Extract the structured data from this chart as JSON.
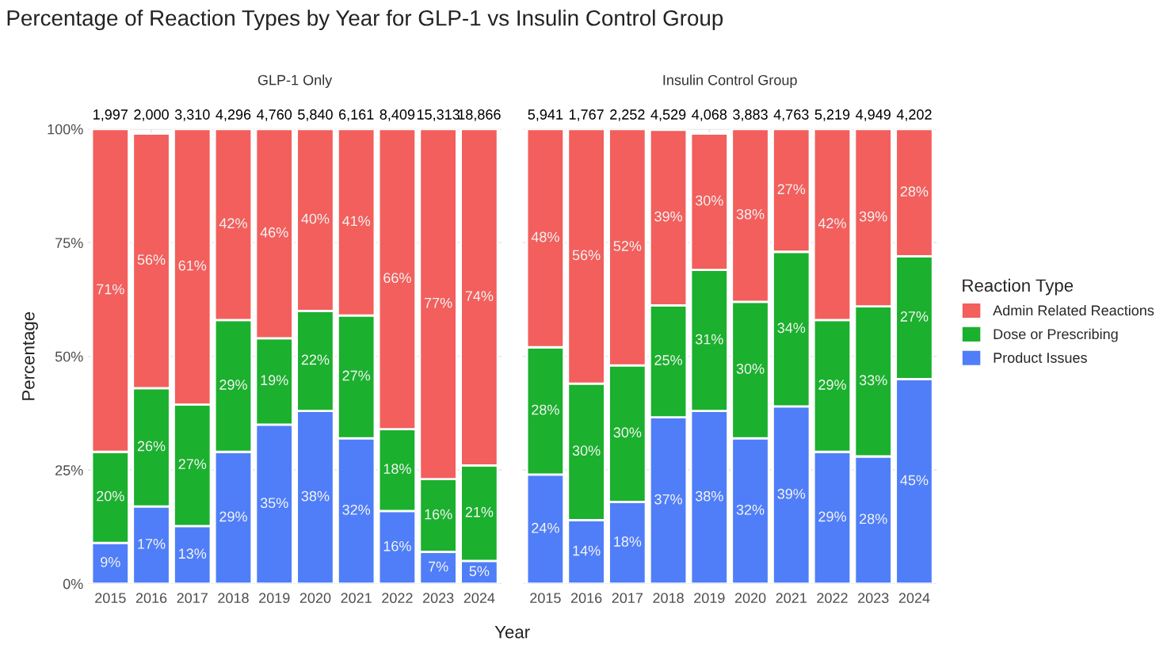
{
  "chart_data": [
    {
      "type": "bar",
      "stacked": true,
      "title": "Percentage of Reaction Types by Year for GLP-1 vs Insulin Control Group",
      "subtitle": "GLP-1 Only",
      "xlabel": "Year",
      "ylabel": "Percentage",
      "legend_title": "Reaction Type",
      "legend": "right",
      "categories": [
        "2015",
        "2016",
        "2017",
        "2018",
        "2019",
        "2020",
        "2021",
        "2022",
        "2023",
        "2024"
      ],
      "series": [
        {
          "name": "Product Issues",
          "color": "#4f7ef8",
          "values": [
            9,
            17,
            12.7,
            29,
            35,
            38,
            32,
            16,
            7,
            5
          ],
          "value_labels": [
            "9%",
            "17%",
            "13%",
            "29%",
            "35%",
            "38%",
            "32%",
            "16%",
            "7%",
            "5%"
          ]
        },
        {
          "name": "Dose or Prescribing",
          "color": "#1bb02e",
          "values": [
            20,
            26,
            26.7,
            29,
            19,
            22,
            27,
            18,
            16,
            21
          ],
          "value_labels": [
            "20%",
            "26%",
            "27%",
            "29%",
            "19%",
            "22%",
            "27%",
            "18%",
            "16%",
            "21%"
          ]
        },
        {
          "name": "Admin Related Reactions",
          "color": "#f25f5c",
          "values": [
            71,
            56,
            60.6,
            42,
            46,
            40,
            41,
            66,
            77,
            74
          ],
          "value_labels": [
            "71%",
            "56%",
            "61%",
            "42%",
            "46%",
            "40%",
            "41%",
            "66%",
            "77%",
            "74%"
          ]
        }
      ],
      "annotations": [
        {
          "text": "1,997",
          "x": "2015",
          "y": 100
        },
        {
          "text": "2,000",
          "x": "2016",
          "y": 100
        },
        {
          "text": "3,310",
          "x": "2017",
          "y": 100
        },
        {
          "text": "4,296",
          "x": "2018",
          "y": 100
        },
        {
          "text": "4,760",
          "x": "2019",
          "y": 100
        },
        {
          "text": "5,840",
          "x": "2020",
          "y": 100
        },
        {
          "text": "6,161",
          "x": "2021",
          "y": 100
        },
        {
          "text": "8,409",
          "x": "2022",
          "y": 100
        },
        {
          "text": "15,313",
          "x": "2023",
          "y": 100
        },
        {
          "text": "18,866",
          "x": "2024",
          "y": 100
        }
      ],
      "ylim": [
        0,
        100
      ],
      "yticks": [
        {
          "value": 0,
          "label": "0%"
        },
        {
          "value": 25,
          "label": "25%"
        },
        {
          "value": 50,
          "label": "50%"
        },
        {
          "value": 75,
          "label": "75%"
        },
        {
          "value": 100,
          "label": "100%"
        }
      ],
      "grid": true
    },
    {
      "type": "bar",
      "stacked": true,
      "subtitle": "Insulin Control Group",
      "tick_labels": "x",
      "categories": [
        "2015",
        "2016",
        "2017",
        "2018",
        "2019",
        "2020",
        "2021",
        "2022",
        "2023",
        "2024"
      ],
      "series": [
        {
          "color": "#4f7ef8",
          "values": [
            24,
            14,
            18,
            36.6,
            38,
            32,
            39,
            29,
            28,
            45
          ],
          "value_labels": [
            "24%",
            "14%",
            "18%",
            "37%",
            "38%",
            "32%",
            "39%",
            "29%",
            "28%",
            "45%"
          ]
        },
        {
          "color": "#1bb02e",
          "values": [
            28,
            30,
            30,
            24.6,
            31,
            30,
            34,
            29,
            33,
            27
          ],
          "value_labels": [
            "28%",
            "30%",
            "30%",
            "25%",
            "31%",
            "30%",
            "34%",
            "29%",
            "33%",
            "27%"
          ]
        },
        {
          "color": "#f25f5c",
          "values": [
            48,
            56,
            52,
            38.6,
            30,
            38,
            27,
            42,
            39,
            28
          ],
          "value_labels": [
            "48%",
            "56%",
            "52%",
            "39%",
            "30%",
            "38%",
            "27%",
            "42%",
            "39%",
            "28%"
          ]
        }
      ],
      "annotations": [
        {
          "text": "5,941",
          "x": "2015",
          "y": 100
        },
        {
          "text": "1,767",
          "x": "2016",
          "y": 100
        },
        {
          "text": "2,252",
          "x": "2017",
          "y": 100
        },
        {
          "text": "4,529",
          "x": "2018",
          "y": 100
        },
        {
          "text": "4,068",
          "x": "2019",
          "y": 100
        },
        {
          "text": "3,883",
          "x": "2020",
          "y": 100
        },
        {
          "text": "4,763",
          "x": "2021",
          "y": 100
        },
        {
          "text": "5,219",
          "x": "2022",
          "y": 100
        },
        {
          "text": "4,949",
          "x": "2023",
          "y": 100
        },
        {
          "text": "4,202",
          "x": "2024",
          "y": 100
        }
      ],
      "ylim": [
        0,
        100
      ],
      "grid": true
    }
  ]
}
